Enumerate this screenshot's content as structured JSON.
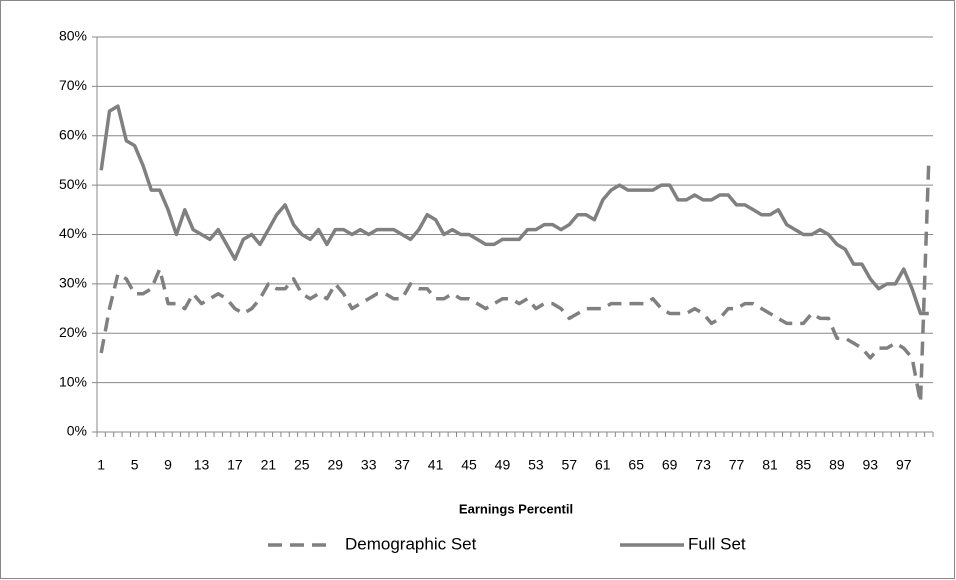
{
  "chart_data": {
    "type": "line",
    "x_label": "Earnings Percentil",
    "categories": [
      "1",
      null,
      null,
      null,
      "5",
      null,
      null,
      null,
      "9",
      null,
      null,
      null,
      "13",
      null,
      null,
      null,
      "17",
      null,
      null,
      null,
      "21",
      null,
      null,
      null,
      "25",
      null,
      null,
      null,
      "29",
      null,
      null,
      null,
      "33",
      null,
      null,
      null,
      "37",
      null,
      null,
      null,
      "41",
      null,
      null,
      null,
      "45",
      null,
      null,
      null,
      "49",
      null,
      null,
      null,
      "53",
      null,
      null,
      null,
      "57",
      null,
      null,
      null,
      "61",
      null,
      null,
      null,
      "65",
      null,
      null,
      null,
      "69",
      null,
      null,
      null,
      "73",
      null,
      null,
      null,
      "77",
      null,
      null,
      null,
      "81",
      null,
      null,
      null,
      "85",
      null,
      null,
      null,
      "89",
      null,
      null,
      null,
      "93",
      null,
      null,
      null,
      "97",
      null,
      null,
      null
    ],
    "series": [
      {
        "name": "Demographic Set",
        "color": "#808080",
        "dash": true,
        "values": [
          16,
          25,
          32,
          31,
          28,
          28,
          29,
          33,
          26,
          26,
          25,
          28,
          26,
          27,
          28,
          27,
          25,
          24,
          25,
          27,
          30,
          29,
          29,
          31,
          28,
          27,
          28,
          27,
          30,
          28,
          25,
          26,
          27,
          28,
          28,
          27,
          27,
          30,
          29,
          29,
          27,
          27,
          28,
          27,
          27,
          26,
          25,
          26,
          27,
          27,
          26,
          27,
          25,
          26,
          26,
          25,
          23,
          24,
          25,
          25,
          25,
          26,
          26,
          26,
          26,
          26,
          27,
          25,
          24,
          24,
          24,
          25,
          24,
          22,
          23,
          25,
          25,
          26,
          26,
          25,
          24,
          23,
          22,
          22,
          22,
          24,
          23,
          23,
          19,
          19,
          18,
          17,
          15,
          17,
          17,
          18,
          17,
          15,
          6,
          55
        ]
      },
      {
        "name": "Full Set",
        "color": "#808080",
        "dash": false,
        "values": [
          53,
          65,
          66,
          59,
          58,
          54,
          49,
          49,
          45,
          40,
          45,
          41,
          40,
          39,
          41,
          38,
          35,
          39,
          40,
          38,
          41,
          44,
          46,
          42,
          40,
          39,
          41,
          38,
          41,
          41,
          40,
          41,
          40,
          41,
          41,
          41,
          40,
          39,
          41,
          44,
          43,
          40,
          41,
          40,
          40,
          39,
          38,
          38,
          39,
          39,
          39,
          41,
          41,
          42,
          42,
          41,
          42,
          44,
          44,
          43,
          47,
          49,
          50,
          49,
          49,
          49,
          49,
          50,
          50,
          47,
          47,
          48,
          47,
          47,
          48,
          48,
          46,
          46,
          45,
          44,
          44,
          45,
          42,
          41,
          40,
          40,
          41,
          40,
          38,
          37,
          34,
          34,
          31,
          29,
          30,
          30,
          33,
          29,
          24,
          24
        ]
      }
    ],
    "ylim": [
      0,
      80
    ],
    "yticks": [
      {
        "value": 0,
        "label": "0%"
      },
      {
        "value": 10,
        "label": "10%"
      },
      {
        "value": 20,
        "label": "20%"
      },
      {
        "value": 30,
        "label": "30%"
      },
      {
        "value": 40,
        "label": "40%"
      },
      {
        "value": 50,
        "label": "50%"
      },
      {
        "value": 60,
        "label": "60%"
      },
      {
        "value": 70,
        "label": "70%"
      },
      {
        "value": 80,
        "label": "80%"
      }
    ],
    "grid": true
  }
}
